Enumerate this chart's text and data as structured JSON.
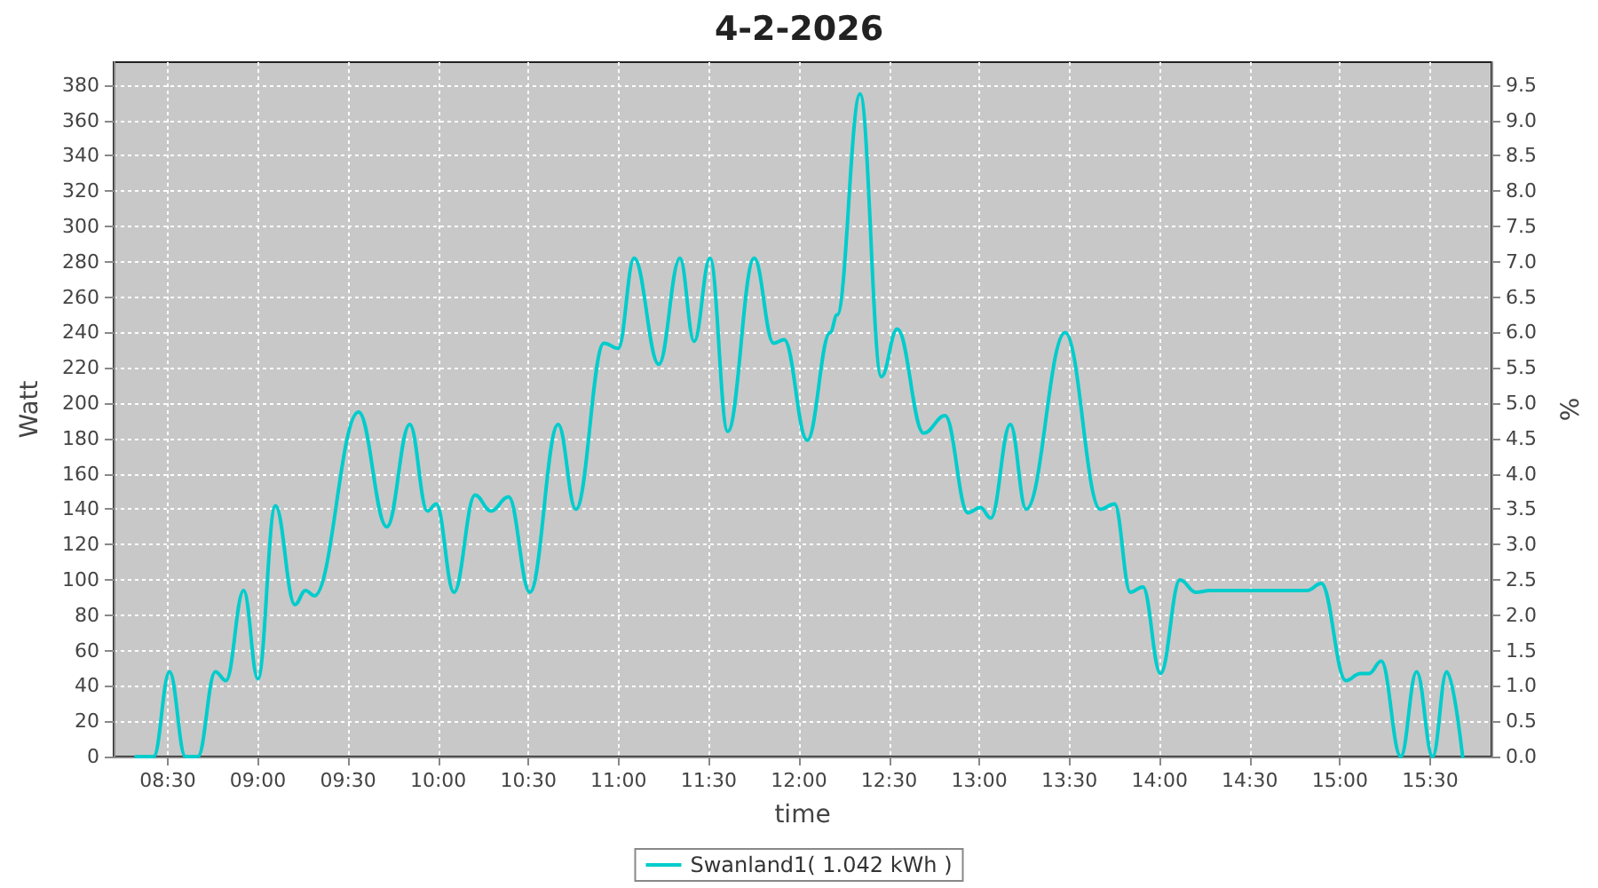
{
  "chart_data": {
    "type": "line",
    "title": "4-2-2026",
    "xlabel": "time",
    "ylabel": "Watt",
    "y2label": "%",
    "x": [
      8.324,
      8.422,
      8.51,
      8.598,
      8.667,
      8.764,
      8.823,
      8.921,
      9.0,
      9.097,
      9.205,
      9.264,
      9.313,
      9.558,
      9.715,
      9.842,
      9.94,
      9.989,
      10.087,
      10.204,
      10.292,
      10.39,
      10.508,
      10.665,
      10.763,
      10.919,
      10.998,
      11.086,
      11.223,
      11.34,
      11.419,
      11.507,
      11.605,
      11.752,
      11.859,
      11.918,
      12.046,
      12.173,
      12.212,
      12.339,
      12.457,
      12.545,
      12.692,
      12.81,
      12.937,
      13.006,
      13.064,
      13.172,
      13.26,
      13.476,
      13.671,
      13.75,
      13.838,
      13.907,
      14.005,
      14.113,
      14.201,
      14.279,
      14.818,
      14.896,
      15.033,
      15.112,
      15.161,
      15.229,
      15.337,
      15.425,
      15.514,
      15.592,
      15.68
    ],
    "series": [
      {
        "name": "Swanland1( 1.042 kWh )",
        "color": "#00cccc",
        "values": [
          0,
          0,
          48,
          0,
          0,
          48,
          43,
          94,
          44,
          142,
          86,
          94,
          91,
          195,
          130,
          188,
          139,
          143,
          93,
          148,
          139,
          147,
          93,
          188,
          140,
          234,
          231,
          282,
          222,
          282,
          235,
          282,
          184,
          282,
          234,
          236,
          179,
          240,
          250,
          375,
          215,
          242,
          183,
          193,
          138,
          141,
          135,
          188,
          140,
          240,
          140,
          143,
          93,
          96,
          47,
          100,
          93,
          94,
          94,
          98,
          43,
          47,
          47,
          54,
          0,
          48,
          0,
          48,
          0
        ]
      }
    ],
    "xlim": [
      8.2,
      15.84
    ],
    "xticks": [
      {
        "value": 8.5,
        "label": "08:30"
      },
      {
        "value": 9,
        "label": "09:00"
      },
      {
        "value": 9.5,
        "label": "09:30"
      },
      {
        "value": 10,
        "label": "10:00"
      },
      {
        "value": 10.5,
        "label": "10:30"
      },
      {
        "value": 11,
        "label": "11:00"
      },
      {
        "value": 11.5,
        "label": "11:30"
      },
      {
        "value": 12,
        "label": "12:00"
      },
      {
        "value": 12.5,
        "label": "12:30"
      },
      {
        "value": 13,
        "label": "13:00"
      },
      {
        "value": 13.5,
        "label": "13:30"
      },
      {
        "value": 14,
        "label": "14:00"
      },
      {
        "value": 14.5,
        "label": "14:30"
      },
      {
        "value": 15,
        "label": "15:00"
      },
      {
        "value": 15.5,
        "label": "15:30"
      }
    ],
    "ylim": [
      0,
      393
    ],
    "yticks": [
      0,
      20,
      40,
      60,
      80,
      100,
      120,
      140,
      160,
      180,
      200,
      220,
      240,
      260,
      280,
      300,
      320,
      340,
      360,
      380
    ],
    "y2lim": [
      0,
      9.825
    ],
    "y2ticks": [
      {
        "value": 0,
        "label": "0.0"
      },
      {
        "value": 0.5,
        "label": "0.5"
      },
      {
        "value": 1,
        "label": "1.0"
      },
      {
        "value": 1.5,
        "label": "1.5"
      },
      {
        "value": 2,
        "label": "2.0"
      },
      {
        "value": 2.5,
        "label": "2.5"
      },
      {
        "value": 3,
        "label": "3.0"
      },
      {
        "value": 3.5,
        "label": "3.5"
      },
      {
        "value": 4,
        "label": "4.0"
      },
      {
        "value": 4.5,
        "label": "4.5"
      },
      {
        "value": 5,
        "label": "5.0"
      },
      {
        "value": 5.5,
        "label": "5.5"
      },
      {
        "value": 6,
        "label": "6.0"
      },
      {
        "value": 6.5,
        "label": "6.5"
      },
      {
        "value": 7,
        "label": "7.0"
      },
      {
        "value": 7.5,
        "label": "7.5"
      },
      {
        "value": 8,
        "label": "8.0"
      },
      {
        "value": 8.5,
        "label": "8.5"
      },
      {
        "value": 9,
        "label": "9.0"
      },
      {
        "value": 9.5,
        "label": "9.5"
      }
    ],
    "grid": true,
    "legend": "bottom",
    "marker": "none",
    "line_style": "solid"
  }
}
